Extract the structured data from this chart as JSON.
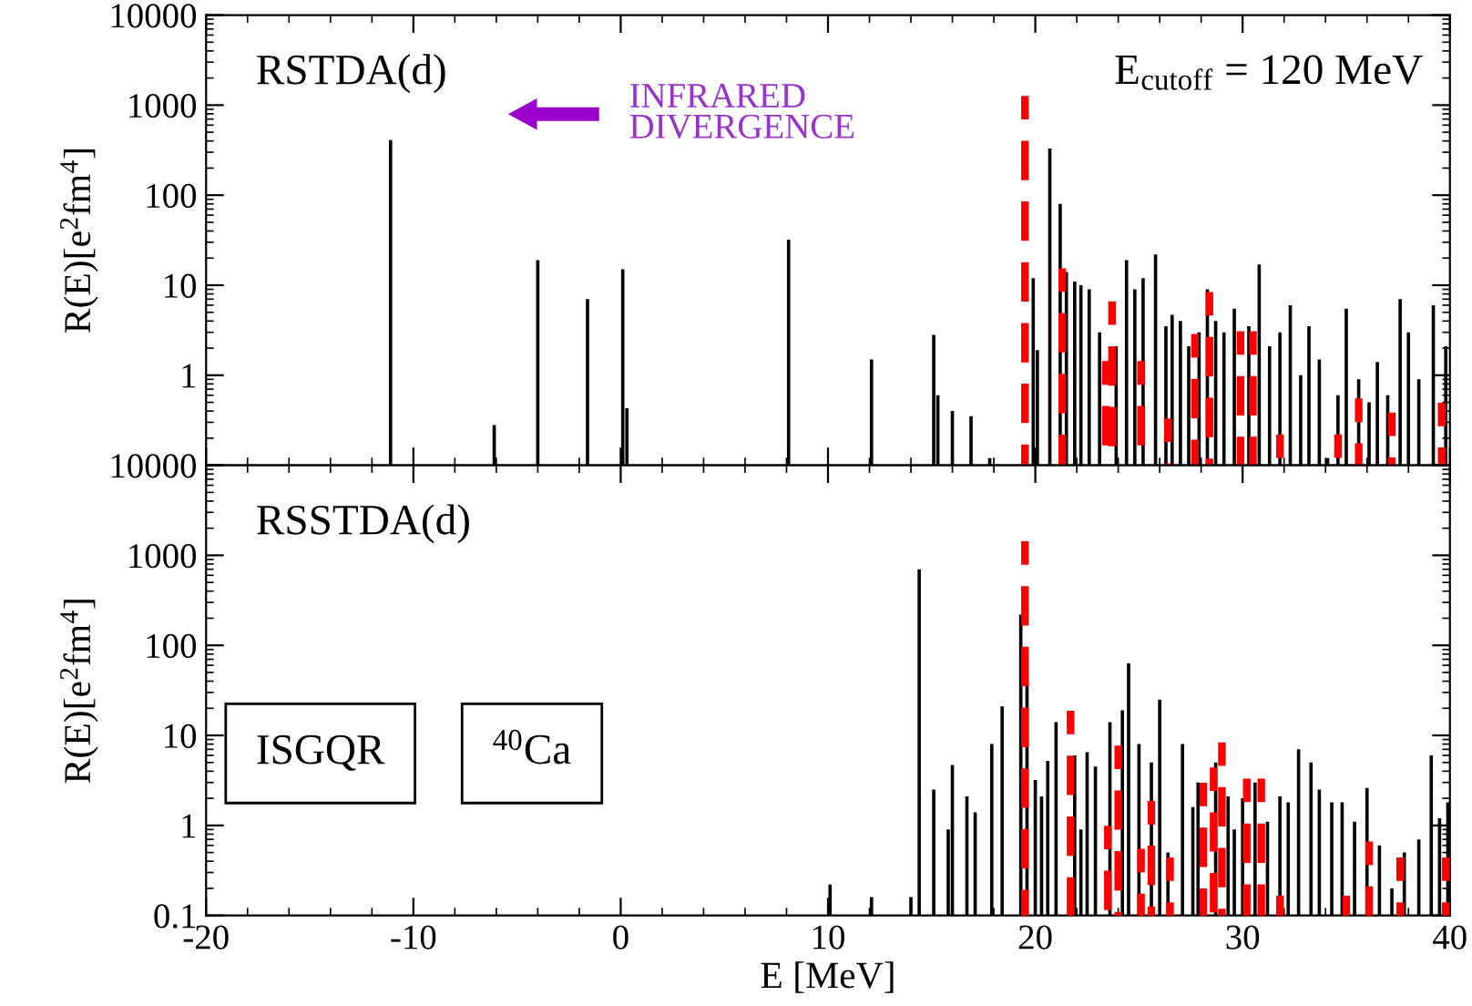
{
  "chart_data": [
    {
      "type": "bar",
      "log": true,
      "ylabel": "R(E)[e$^{2}$fm$^{4}$]",
      "tick_labels": "y",
      "xlim": [
        -20,
        40
      ],
      "xticks": [
        -20,
        -10,
        0,
        10,
        20,
        30,
        40
      ],
      "ylim": [
        0.1,
        10000
      ],
      "yticks": [
        {
          "value": 0.1,
          "label": null
        },
        1,
        10,
        100,
        1000,
        10000
      ],
      "annotations": [
        "RSTDA(d)",
        "INFRARED\nDIVERGENCE",
        "E$_{cutoff}$ = 120 MeV"
      ],
      "series": [
        {
          "color": "#000000",
          "x": [
            -11.1,
            -6.1,
            -4.0,
            -1.6,
            0.1,
            0.3,
            8.1,
            12.1,
            15.1,
            15.3,
            16.0,
            16.9,
            17.8,
            19.9,
            20.1,
            20.7,
            21.2,
            21.5,
            21.9,
            22.2,
            22.6,
            23.1,
            23.9,
            24.4,
            24.8,
            25.2,
            25.8,
            26.3,
            26.6,
            27.0,
            27.4,
            27.9,
            28.3,
            28.7,
            29.1,
            29.6,
            30.3,
            30.8,
            31.3,
            31.8,
            32.3,
            32.8,
            33.2,
            33.7,
            34.1,
            34.6,
            35.0,
            35.6,
            36.1,
            36.5,
            37.0,
            37.6,
            38.0,
            38.5,
            39.2,
            39.8
          ],
          "values": [
            410,
            0.28,
            19,
            7,
            15,
            0.43,
            32,
            1.5,
            2.8,
            0.6,
            0.4,
            0.35,
            0.12,
            12,
            1.9,
            330,
            80,
            14,
            11,
            10,
            9,
            3,
            2.1,
            19,
            9,
            12,
            22,
            3.5,
            4.7,
            4,
            2.1,
            3,
            9,
            4,
            3,
            5.5,
            3.5,
            17,
            2.1,
            3,
            6,
            1,
            3.5,
            1.5,
            0.12,
            0.6,
            5.5,
            0.9,
            0.5,
            1.4,
            0.6,
            7,
            3,
            0.9,
            6,
            2.1
          ]
        },
        {
          "color": "#ff0000",
          "line_style": "dashed",
          "x": [
            19.5,
            21.3,
            23.4,
            23.7,
            25.1,
            26.4,
            27.7,
            28.4,
            29.9,
            30.5,
            31.8,
            34.6,
            35.6,
            37.2,
            39.6
          ],
          "values": [
            1150,
            14,
            1.3,
            6,
            1.3,
            0.3,
            2.6,
            7.6,
            2.8,
            2.8,
            0.2,
            0.2,
            0.5,
            0.35,
            0.45
          ]
        }
      ]
    },
    {
      "type": "bar",
      "log": true,
      "xlabel": "E [MeV]",
      "ylabel": "R(E)[e$^{2}$fm$^{4}$]",
      "xlim": [
        -20,
        40
      ],
      "xticks": [
        -20,
        -10,
        0,
        10,
        20,
        30,
        40
      ],
      "ylim": [
        0.1,
        10000
      ],
      "yticks": [
        0.1,
        1,
        10,
        100,
        1000,
        10000
      ],
      "annotations": [
        "RSSTDA(d)",
        "ISGQR",
        "$^{40}$Ca"
      ],
      "series": [
        {
          "color": "#000000",
          "x": [
            10.1,
            12.1,
            14.0,
            14.4,
            15.1,
            15.8,
            16.0,
            16.7,
            17.1,
            17.9,
            18.4,
            19.3,
            19.6,
            20.0,
            20.3,
            20.6,
            21.0,
            21.9,
            22.2,
            22.5,
            22.9,
            23.6,
            24.2,
            24.5,
            25.0,
            25.6,
            26.0,
            26.4,
            27.1,
            27.6,
            27.85,
            28.7,
            29.3,
            29.6,
            30.0,
            30.6,
            31.2,
            31.8,
            32.2,
            32.7,
            33.3,
            33.7,
            34.3,
            34.8,
            35.4,
            36.0,
            36.6,
            37.2,
            37.8,
            38.5,
            39.1,
            39.5,
            39.9
          ],
          "values": [
            0.22,
            0.16,
            0.16,
            700,
            2.5,
            0.9,
            4.7,
            2.1,
            1.4,
            8,
            21,
            220,
            39,
            3.2,
            2.1,
            5.2,
            14,
            6,
            0.9,
            6.5,
            4.5,
            14,
            19,
            63,
            8,
            5,
            25,
            0.5,
            8,
            1.6,
            3,
            5,
            2.1,
            0.9,
            2,
            3,
            1.1,
            2.1,
            1.8,
            7,
            5,
            2.5,
            1.8,
            1.8,
            1.1,
            2.6,
            0.6,
            0.2,
            0.5,
            0.7,
            6,
            1.2,
            1.8
          ]
        },
        {
          "color": "#ff0000",
          "line_style": "dashed",
          "x": [
            19.5,
            21.7,
            23.5,
            24.0,
            25.1,
            25.6,
            26.5,
            28.1,
            28.6,
            29.0,
            30.2,
            30.9,
            31.8,
            35.0,
            36.1,
            37.6,
            39.8
          ],
          "values": [
            1300,
            17,
            0.9,
            7,
            0.5,
            1.7,
            0.4,
            2.7,
            4,
            7.6,
            3,
            3,
            0.15,
            0.15,
            0.6,
            0.4,
            0.4
          ]
        }
      ]
    }
  ]
}
